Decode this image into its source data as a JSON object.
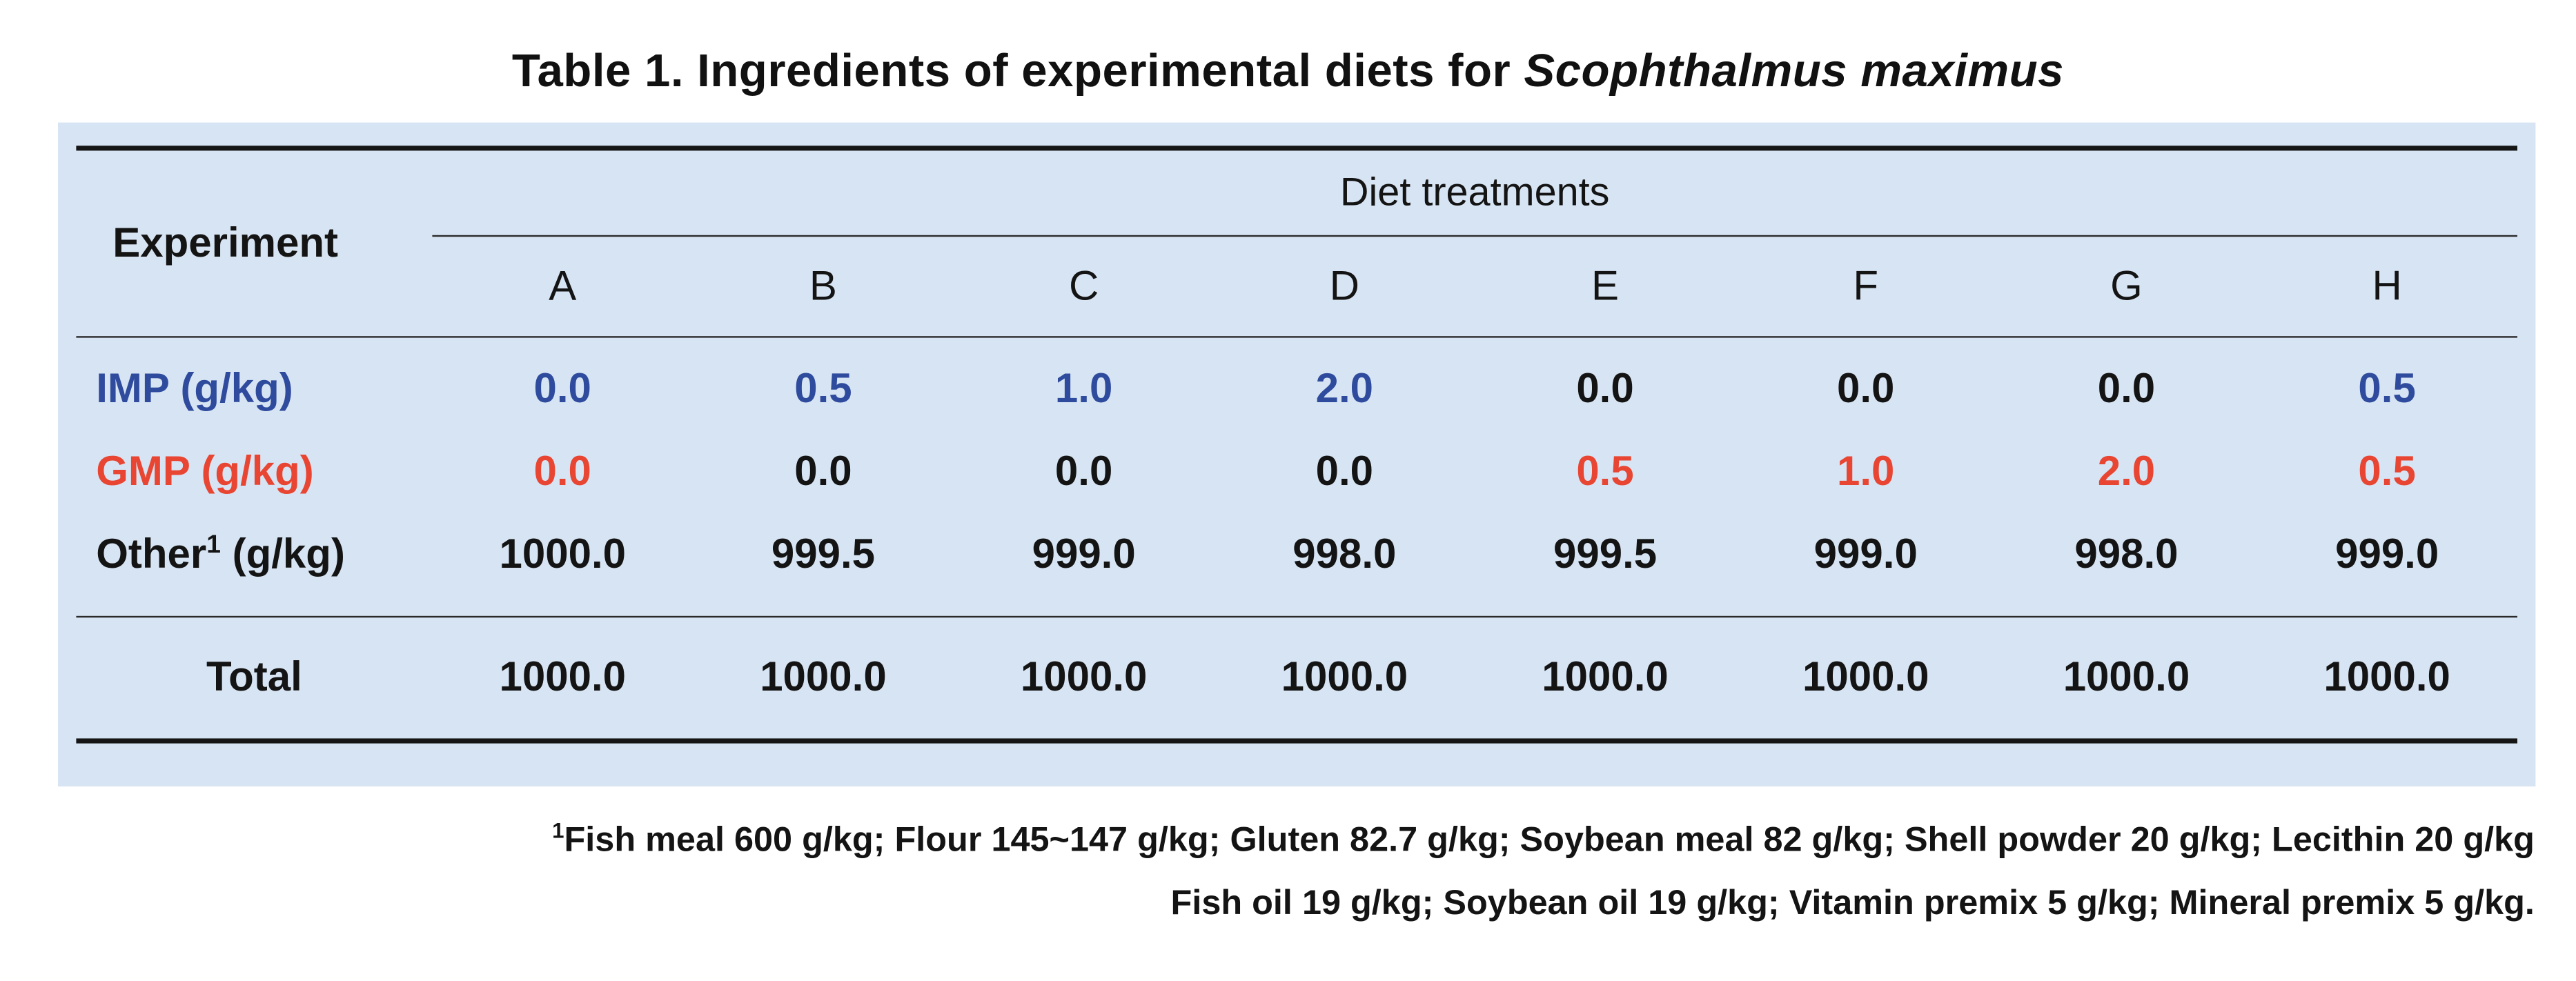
{
  "title": {
    "prefix": "Table 1. Ingredients of experimental diets for ",
    "species": "Scophthalmus maximus"
  },
  "colors": {
    "panel_bg": "#d7e4f3",
    "text": "#141414",
    "imp_blue": "#2f4b9d",
    "gmp_red": "#e84532"
  },
  "table": {
    "experiment_header": "Experiment",
    "diet_treatments_header": "Diet treatments",
    "columns": [
      "A",
      "B",
      "C",
      "D",
      "E",
      "F",
      "G",
      "H"
    ],
    "rows": [
      {
        "label_prefix": "IMP (g/kg)",
        "label_sup": "",
        "label_suffix": "",
        "label_color": "#2f4b9d",
        "values": [
          "0.0",
          "0.5",
          "1.0",
          "2.0",
          "0.0",
          "0.0",
          "0.0",
          "0.5"
        ],
        "value_colors": [
          "#2f4b9d",
          "#2f4b9d",
          "#2f4b9d",
          "#2f4b9d",
          "#141414",
          "#141414",
          "#141414",
          "#2f4b9d"
        ]
      },
      {
        "label_prefix": "GMP (g/kg)",
        "label_sup": "",
        "label_suffix": "",
        "label_color": "#e84532",
        "values": [
          "0.0",
          "0.0",
          "0.0",
          "0.0",
          "0.5",
          "1.0",
          "2.0",
          "0.5"
        ],
        "value_colors": [
          "#e84532",
          "#141414",
          "#141414",
          "#141414",
          "#e84532",
          "#e84532",
          "#e84532",
          "#e84532"
        ]
      },
      {
        "label_prefix": "Other",
        "label_sup": "1",
        "label_suffix": " (g/kg)",
        "label_color": "#141414",
        "values": [
          "1000.0",
          "999.5",
          "999.0",
          "998.0",
          "999.5",
          "999.0",
          "998.0",
          "999.0"
        ],
        "value_colors": [
          "#141414",
          "#141414",
          "#141414",
          "#141414",
          "#141414",
          "#141414",
          "#141414",
          "#141414"
        ]
      }
    ],
    "total": {
      "label": "Total",
      "values": [
        "1000.0",
        "1000.0",
        "1000.0",
        "1000.0",
        "1000.0",
        "1000.0",
        "1000.0",
        "1000.0"
      ]
    }
  },
  "footnotes": [
    {
      "sup": "1",
      "text": "Fish meal 600 g/kg; Flour 145~147 g/kg; Gluten 82.7 g/kg; Soybean meal 82 g/kg; Shell powder 20 g/kg; Lecithin 20 g/kg"
    },
    {
      "sup": "",
      "text": "Fish oil 19 g/kg; Soybean oil 19 g/kg; Vitamin premix 5 g/kg; Mineral premix 5 g/kg."
    }
  ]
}
